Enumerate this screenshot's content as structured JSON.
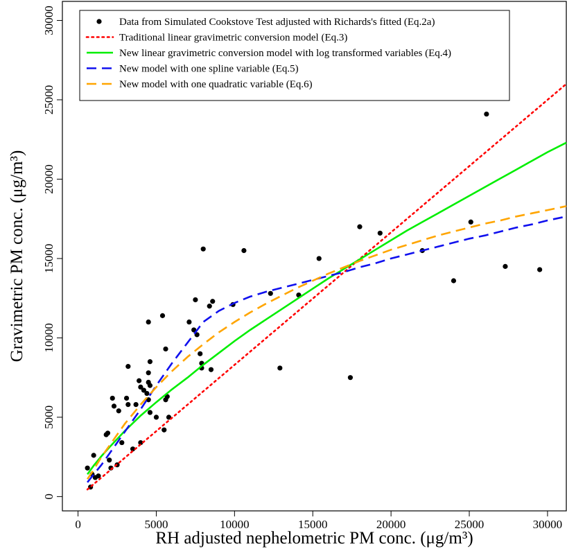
{
  "chart_data": {
    "type": "scatter",
    "xlabel": "RH adjusted nephelometric PM conc. (μg/m³)",
    "ylabel": "Gravimetric PM conc. (μg/m³)",
    "xlim": [
      -1000,
      31200
    ],
    "ylim": [
      -900,
      31200
    ],
    "xticks": [
      0,
      5000,
      10000,
      15000,
      20000,
      25000,
      30000
    ],
    "yticks": [
      0,
      5000,
      10000,
      15000,
      20000,
      25000,
      30000
    ],
    "grid": false,
    "legend_position": "top-left",
    "series": [
      {
        "name": "Data from Simulated Cookstove Test adjusted with Richards's fitted (Eq.2a)",
        "kind": "points",
        "color": "#000000",
        "points": [
          [
            600,
            1800
          ],
          [
            800,
            600
          ],
          [
            900,
            1400
          ],
          [
            1000,
            2600
          ],
          [
            1100,
            1200
          ],
          [
            1300,
            1300
          ],
          [
            1800,
            3900
          ],
          [
            1900,
            4000
          ],
          [
            2000,
            2300
          ],
          [
            2100,
            1800
          ],
          [
            2200,
            6200
          ],
          [
            2300,
            5700
          ],
          [
            2500,
            2000
          ],
          [
            2600,
            5400
          ],
          [
            2800,
            3400
          ],
          [
            3100,
            6200
          ],
          [
            3200,
            5800
          ],
          [
            3200,
            8200
          ],
          [
            3500,
            3000
          ],
          [
            3700,
            5800
          ],
          [
            3900,
            7300
          ],
          [
            4000,
            6900
          ],
          [
            4000,
            3400
          ],
          [
            4200,
            6700
          ],
          [
            4400,
            6500
          ],
          [
            4500,
            6100
          ],
          [
            4500,
            11000
          ],
          [
            4500,
            7800
          ],
          [
            4500,
            7200
          ],
          [
            4600,
            7000
          ],
          [
            4600,
            8500
          ],
          [
            4600,
            5300
          ],
          [
            5000,
            5000
          ],
          [
            5400,
            11400
          ],
          [
            5500,
            4200
          ],
          [
            5600,
            9300
          ],
          [
            5600,
            6100
          ],
          [
            5700,
            6300
          ],
          [
            5800,
            5000
          ],
          [
            7100,
            11000
          ],
          [
            7400,
            10500
          ],
          [
            7500,
            12400
          ],
          [
            7600,
            10200
          ],
          [
            7800,
            9000
          ],
          [
            7900,
            8400
          ],
          [
            7900,
            8100
          ],
          [
            8000,
            15600
          ],
          [
            8400,
            12000
          ],
          [
            8500,
            8000
          ],
          [
            8600,
            12300
          ],
          [
            9900,
            12100
          ],
          [
            10600,
            15500
          ],
          [
            12300,
            12800
          ],
          [
            12900,
            8100
          ],
          [
            14100,
            12700
          ],
          [
            15400,
            15000
          ],
          [
            17400,
            7500
          ],
          [
            18000,
            17000
          ],
          [
            19300,
            16600
          ],
          [
            22000,
            15500
          ],
          [
            24000,
            13600
          ],
          [
            25100,
            17300
          ],
          [
            26100,
            24100
          ],
          [
            27300,
            14500
          ],
          [
            29500,
            14300
          ]
        ]
      },
      {
        "name": "Traditional linear gravimetric conversion model (Eq.3)",
        "kind": "line",
        "style": "dotted",
        "color": "#ff0000",
        "points": [
          [
            600,
            450
          ],
          [
            31200,
            26000
          ]
        ]
      },
      {
        "name": "New linear gravimetric conversion model with log transformed variables (Eq.4)",
        "kind": "line",
        "style": "solid",
        "color": "#00ee00",
        "points": [
          [
            600,
            1400
          ],
          [
            1000,
            1950
          ],
          [
            1500,
            2550
          ],
          [
            2000,
            3100
          ],
          [
            3000,
            4150
          ],
          [
            4000,
            5100
          ],
          [
            5000,
            5950
          ],
          [
            6000,
            6750
          ],
          [
            7000,
            7500
          ],
          [
            8000,
            8300
          ],
          [
            9000,
            9050
          ],
          [
            10000,
            9800
          ],
          [
            11000,
            10500
          ],
          [
            12000,
            11150
          ],
          [
            13000,
            11800
          ],
          [
            14000,
            12450
          ],
          [
            15000,
            13100
          ],
          [
            16000,
            13750
          ],
          [
            17000,
            14350
          ],
          [
            18000,
            14950
          ],
          [
            19000,
            15550
          ],
          [
            20000,
            16150
          ],
          [
            21000,
            16750
          ],
          [
            22000,
            17300
          ],
          [
            23000,
            17850
          ],
          [
            24000,
            18400
          ],
          [
            25000,
            18950
          ],
          [
            26000,
            19500
          ],
          [
            27000,
            20050
          ],
          [
            28000,
            20600
          ],
          [
            29000,
            21150
          ],
          [
            30000,
            21700
          ],
          [
            31200,
            22300
          ]
        ]
      },
      {
        "name": "New model with one spline variable (Eq.5)",
        "kind": "line",
        "style": "dashed",
        "color": "#1010ee",
        "points": [
          [
            600,
            900
          ],
          [
            1000,
            1400
          ],
          [
            1500,
            2000
          ],
          [
            2000,
            2700
          ],
          [
            3000,
            4100
          ],
          [
            4000,
            5500
          ],
          [
            5000,
            7000
          ],
          [
            6000,
            8400
          ],
          [
            7000,
            9700
          ],
          [
            8000,
            11000
          ],
          [
            9000,
            11700
          ],
          [
            10000,
            12200
          ],
          [
            11000,
            12600
          ],
          [
            12000,
            12900
          ],
          [
            13000,
            13150
          ],
          [
            14000,
            13400
          ],
          [
            15000,
            13650
          ],
          [
            16000,
            13900
          ],
          [
            17000,
            14150
          ],
          [
            18000,
            14450
          ],
          [
            19000,
            14700
          ],
          [
            20000,
            15000
          ],
          [
            21000,
            15250
          ],
          [
            22000,
            15500
          ],
          [
            23000,
            15750
          ],
          [
            24000,
            16000
          ],
          [
            25000,
            16250
          ],
          [
            26000,
            16450
          ],
          [
            27000,
            16700
          ],
          [
            28000,
            16950
          ],
          [
            29000,
            17150
          ],
          [
            30000,
            17400
          ],
          [
            31200,
            17650
          ]
        ]
      },
      {
        "name": "New model with one quadratic variable (Eq.6)",
        "kind": "line",
        "style": "dashed",
        "color": "#ffa500",
        "points": [
          [
            600,
            1100
          ],
          [
            1000,
            1700
          ],
          [
            1500,
            2500
          ],
          [
            2000,
            3200
          ],
          [
            3000,
            4600
          ],
          [
            4000,
            5800
          ],
          [
            5000,
            6900
          ],
          [
            6000,
            7900
          ],
          [
            7000,
            8800
          ],
          [
            8000,
            9600
          ],
          [
            9000,
            10350
          ],
          [
            10000,
            11000
          ],
          [
            11000,
            11600
          ],
          [
            12000,
            12150
          ],
          [
            13000,
            12650
          ],
          [
            14000,
            13150
          ],
          [
            15000,
            13600
          ],
          [
            16000,
            14050
          ],
          [
            17000,
            14450
          ],
          [
            18000,
            14850
          ],
          [
            19000,
            15200
          ],
          [
            20000,
            15550
          ],
          [
            21000,
            15850
          ],
          [
            22000,
            16150
          ],
          [
            23000,
            16450
          ],
          [
            24000,
            16700
          ],
          [
            25000,
            16950
          ],
          [
            26000,
            17200
          ],
          [
            27000,
            17400
          ],
          [
            28000,
            17650
          ],
          [
            29000,
            17850
          ],
          [
            30000,
            18050
          ],
          [
            31200,
            18300
          ]
        ]
      }
    ]
  }
}
